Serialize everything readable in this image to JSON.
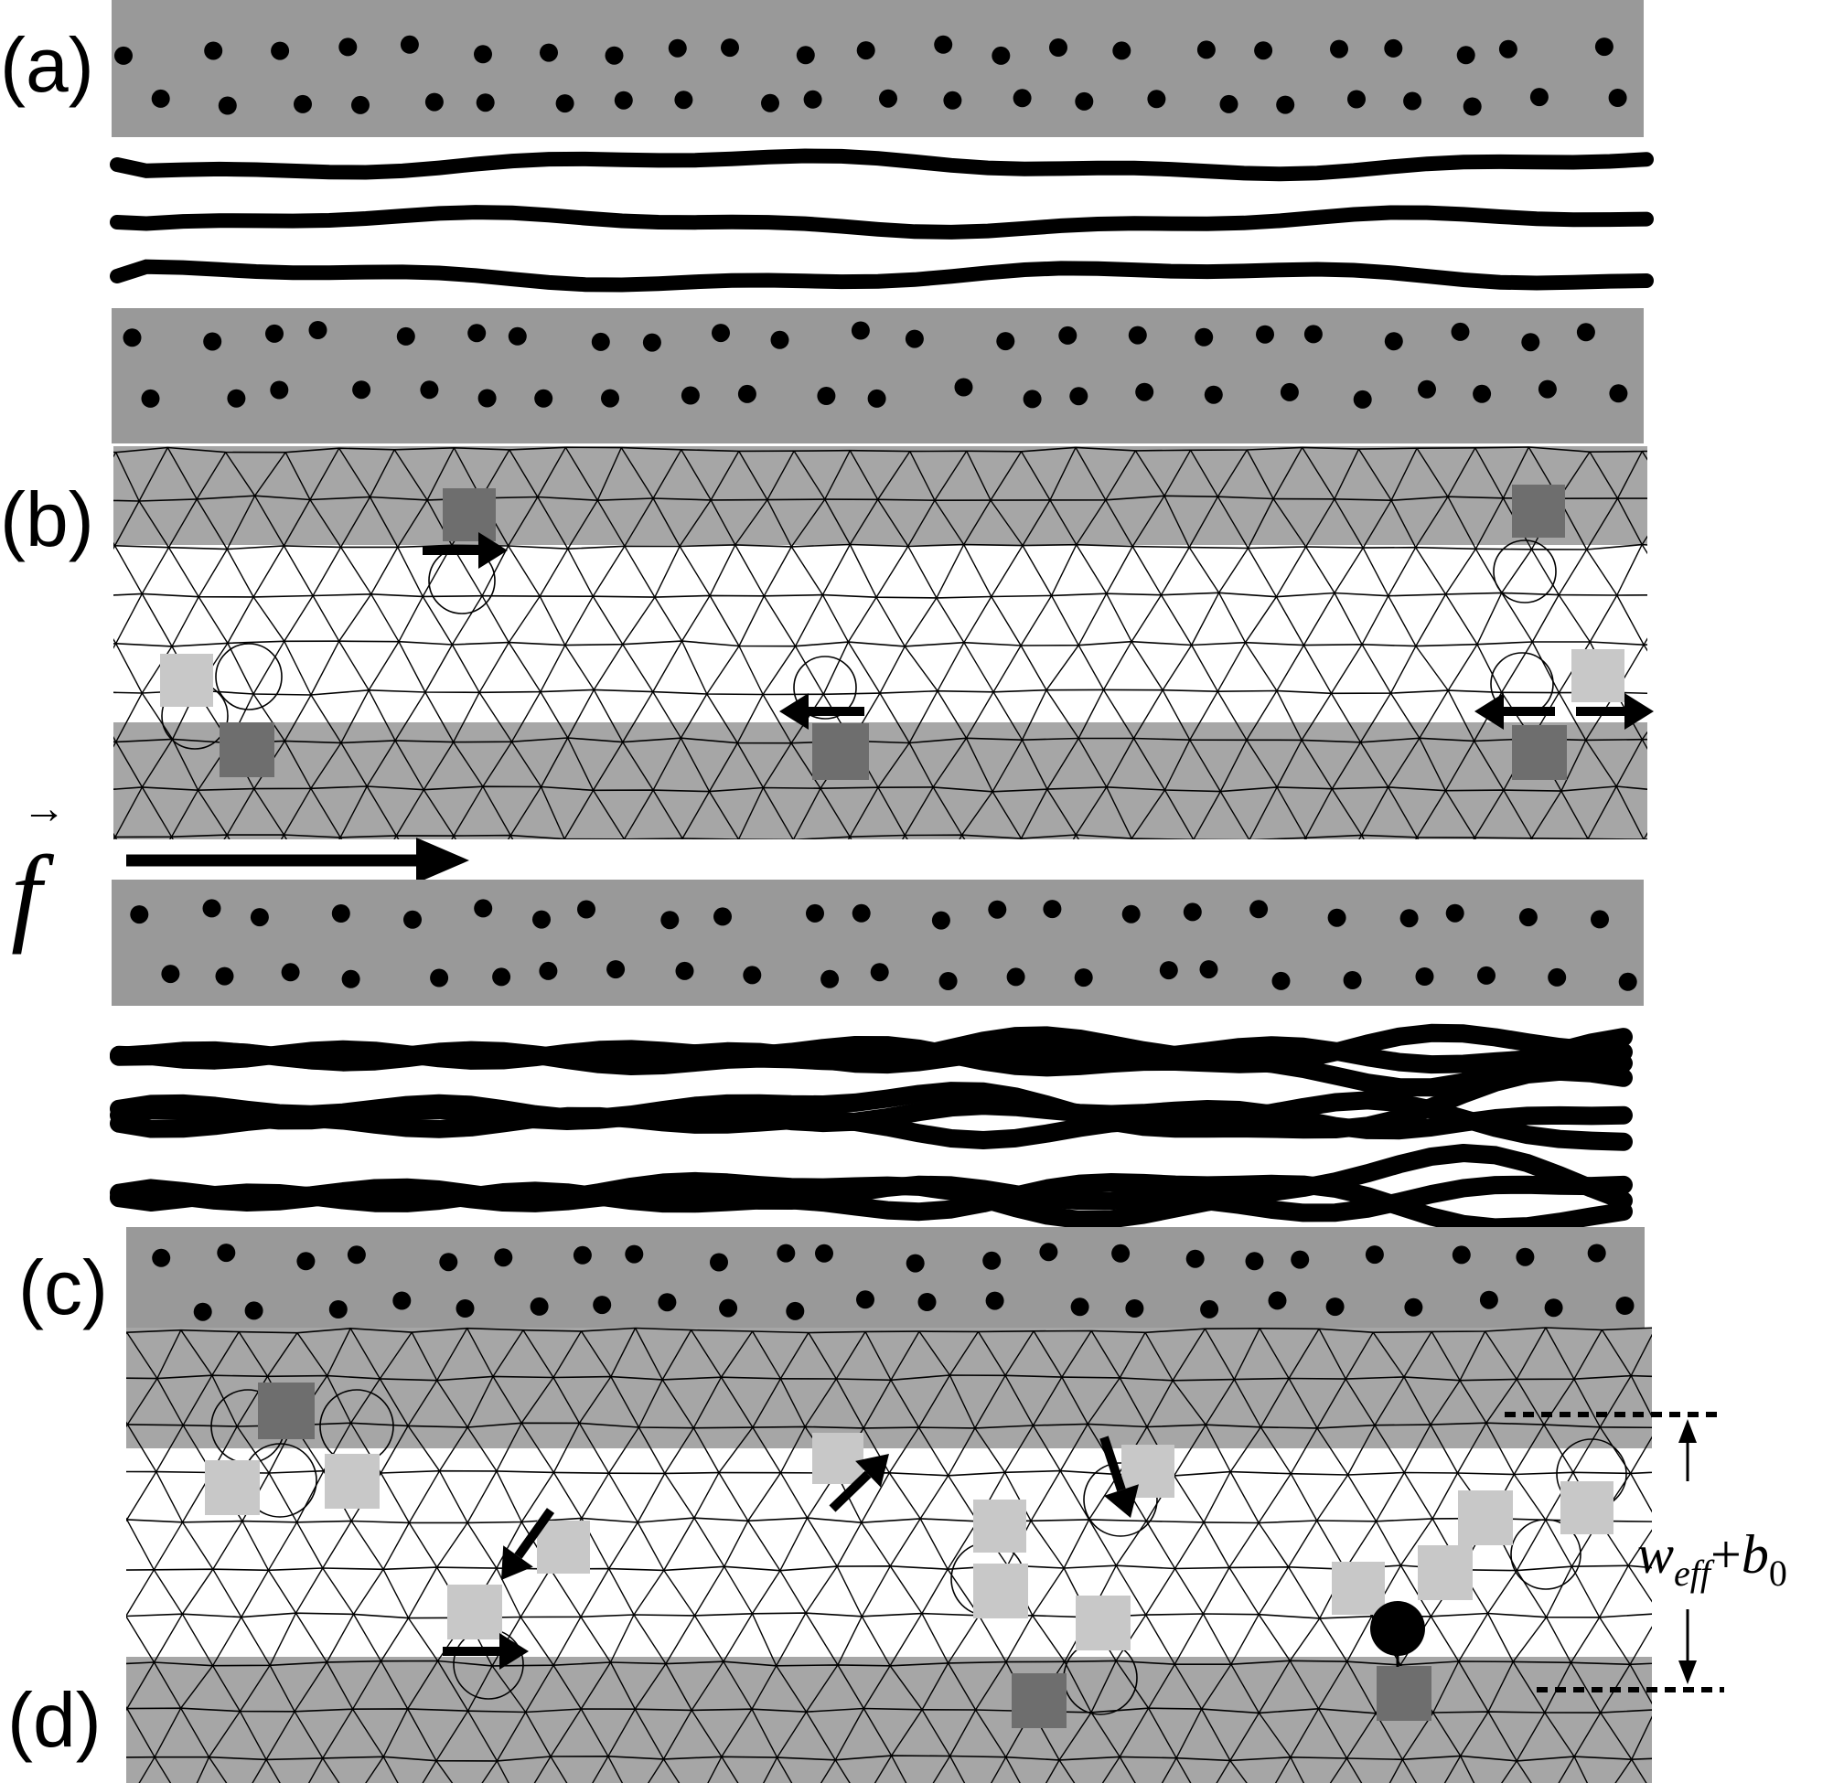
{
  "panel_labels": {
    "a": "(a)",
    "b": "(b)",
    "c": "(c)",
    "d": "(d)"
  },
  "force": {
    "symbol": "f",
    "vector_mark": "→"
  },
  "width_annotation": {
    "w": "w",
    "eff": "eff",
    "plus": "+",
    "b": "b",
    "zero": "0"
  },
  "colors": {
    "pinning_band": "#999999",
    "mesh_band": "#a6a6a6",
    "dark_defect": "#6e6e6e",
    "light_defect": "#c8c8c8",
    "ink": "#000000",
    "background": "#ffffff"
  },
  "icons": {
    "force_arrow": "long-right-arrow",
    "defect_arrow": "short-arrow",
    "width_marker": "dimension-arrows"
  }
}
